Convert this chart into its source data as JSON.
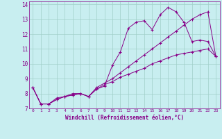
{
  "xlabel": "Windchill (Refroidissement éolien,°C)",
  "background_color": "#c8eef0",
  "grid_color": "#a0cfc8",
  "line_color": "#880088",
  "xlim": [
    -0.5,
    23.5
  ],
  "ylim": [
    7,
    14.2
  ],
  "yticks": [
    7,
    8,
    9,
    10,
    11,
    12,
    13,
    14
  ],
  "xticks": [
    0,
    1,
    2,
    3,
    4,
    5,
    6,
    7,
    8,
    9,
    10,
    11,
    12,
    13,
    14,
    15,
    16,
    17,
    18,
    19,
    20,
    21,
    22,
    23
  ],
  "series": [
    [
      8.4,
      7.3,
      7.3,
      7.7,
      7.8,
      8.0,
      8.0,
      7.8,
      8.3,
      8.5,
      9.9,
      10.8,
      12.4,
      12.8,
      12.9,
      12.3,
      13.3,
      13.8,
      13.5,
      12.8,
      11.5,
      11.6,
      11.5,
      10.5
    ],
    [
      8.4,
      7.3,
      7.3,
      7.6,
      7.8,
      7.9,
      8.0,
      7.8,
      8.4,
      8.7,
      9.0,
      9.4,
      9.8,
      10.2,
      10.6,
      11.0,
      11.4,
      11.8,
      12.2,
      12.6,
      13.0,
      13.3,
      13.5,
      10.5
    ],
    [
      8.4,
      7.3,
      7.3,
      7.6,
      7.8,
      7.9,
      8.0,
      7.8,
      8.3,
      8.6,
      8.8,
      9.1,
      9.3,
      9.5,
      9.7,
      10.0,
      10.2,
      10.4,
      10.6,
      10.7,
      10.8,
      10.9,
      11.0,
      10.5
    ]
  ]
}
